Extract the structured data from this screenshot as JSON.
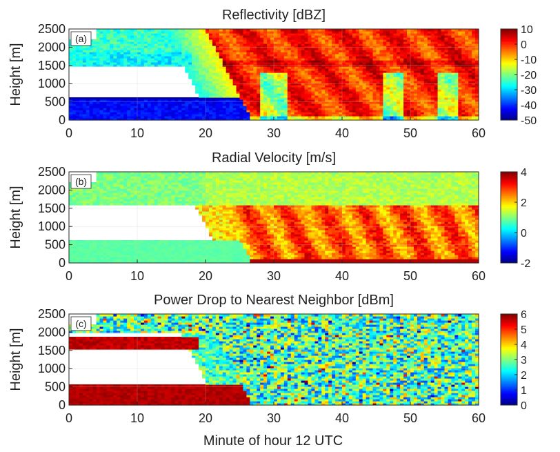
{
  "figure": {
    "xlabel": "Minute of hour 12 UTC"
  },
  "chart_data": [
    {
      "type": "heatmap",
      "panel_label": "(a)",
      "title": "Reflectivity [dBZ]",
      "ylabel": "Height [m]",
      "xlim": [
        0,
        60
      ],
      "ylim": [
        0,
        2500
      ],
      "xticks": [
        0,
        10,
        20,
        30,
        40,
        50,
        60
      ],
      "yticks": [
        0,
        500,
        1000,
        1500,
        2000,
        2500
      ],
      "colorbar": {
        "range": [
          -50,
          10
        ],
        "ticks": [
          10,
          0,
          -10,
          -20,
          -30,
          -40,
          -50
        ],
        "colormap": "jet"
      }
    },
    {
      "type": "heatmap",
      "panel_label": "(b)",
      "title": "Radial Velocity [m/s]",
      "ylabel": "Height [m]",
      "xlim": [
        0,
        60
      ],
      "ylim": [
        0,
        2500
      ],
      "xticks": [
        0,
        10,
        20,
        30,
        40,
        50,
        60
      ],
      "yticks": [
        0,
        500,
        1000,
        1500,
        2000,
        2500
      ],
      "colorbar": {
        "range": [
          -2,
          4
        ],
        "ticks": [
          4,
          2,
          0,
          -2
        ],
        "colormap": "jet"
      }
    },
    {
      "type": "heatmap",
      "panel_label": "(c)",
      "title": "Power Drop to Nearest Neighbor [dBm]",
      "ylabel": "Height [m]",
      "xlim": [
        0,
        60
      ],
      "ylim": [
        0,
        2500
      ],
      "xticks": [
        0,
        10,
        20,
        30,
        40,
        50,
        60
      ],
      "yticks": [
        0,
        500,
        1000,
        1500,
        2000,
        2500
      ],
      "colorbar": {
        "range": [
          0,
          6
        ],
        "ticks": [
          6,
          5,
          4,
          3,
          2,
          1,
          0
        ],
        "colormap": "jet"
      }
    }
  ]
}
